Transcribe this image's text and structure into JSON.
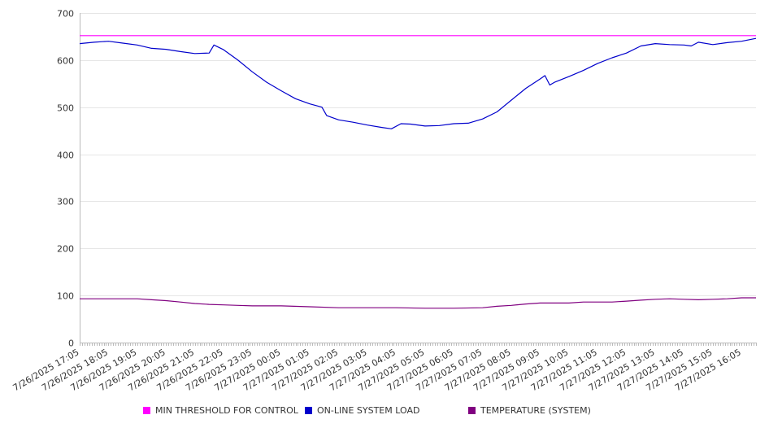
{
  "chart_data": {
    "type": "line",
    "x_start": "7/26/2025 17:05",
    "x_end": "7/27/2025 16:35",
    "x_interval_minutes": 5,
    "tick_labels": [
      "7/26/2025 17:05",
      "7/26/2025 18:05",
      "7/26/2025 19:05",
      "7/26/2025 20:05",
      "7/26/2025 21:05",
      "7/26/2025 22:05",
      "7/26/2025 23:05",
      "7/27/2025 00:05",
      "7/27/2025 01:05",
      "7/27/2025 02:05",
      "7/27/2025 03:05",
      "7/27/2025 04:05",
      "7/27/2025 05:05",
      "7/27/2025 06:05",
      "7/27/2025 07:05",
      "7/27/2025 08:05",
      "7/27/2025 09:05",
      "7/27/2025 10:05",
      "7/27/2025 11:05",
      "7/27/2025 12:05",
      "7/27/2025 13:05",
      "7/27/2025 14:05",
      "7/27/2025 15:05",
      "7/27/2025 16:05"
    ],
    "ylim": [
      0,
      700
    ],
    "yticks": [
      0,
      100,
      200,
      300,
      400,
      500,
      600,
      700
    ],
    "grid": true,
    "legend_position": "bottom",
    "series": [
      {
        "name": "MIN THRESHOLD FOR CONTROL",
        "color": "#ff00ff",
        "points": [
          [
            "7/26/2025 17:05",
            652
          ],
          [
            "7/27/2025 16:35",
            652
          ]
        ]
      },
      {
        "name": "ON-LINE SYSTEM LOAD",
        "color": "#0000cc",
        "points": [
          [
            "7/26/2025 17:05",
            635
          ],
          [
            "7/26/2025 17:35",
            638
          ],
          [
            "7/26/2025 18:05",
            640
          ],
          [
            "7/26/2025 18:35",
            636
          ],
          [
            "7/26/2025 19:05",
            632
          ],
          [
            "7/26/2025 19:35",
            625
          ],
          [
            "7/26/2025 20:05",
            623
          ],
          [
            "7/26/2025 20:35",
            618
          ],
          [
            "7/26/2025 21:05",
            614
          ],
          [
            "7/26/2025 21:35",
            615
          ],
          [
            "7/26/2025 21:45",
            632
          ],
          [
            "7/26/2025 22:05",
            622
          ],
          [
            "7/26/2025 22:35",
            600
          ],
          [
            "7/26/2025 23:05",
            575
          ],
          [
            "7/26/2025 23:35",
            553
          ],
          [
            "7/27/2025 00:05",
            535
          ],
          [
            "7/27/2025 00:35",
            518
          ],
          [
            "7/27/2025 01:05",
            507
          ],
          [
            "7/27/2025 01:30",
            500
          ],
          [
            "7/27/2025 01:40",
            482
          ],
          [
            "7/27/2025 02:05",
            473
          ],
          [
            "7/27/2025 02:35",
            468
          ],
          [
            "7/27/2025 03:05",
            462
          ],
          [
            "7/27/2025 03:35",
            457
          ],
          [
            "7/27/2025 03:55",
            454
          ],
          [
            "7/27/2025 04:15",
            465
          ],
          [
            "7/27/2025 04:35",
            464
          ],
          [
            "7/27/2025 05:05",
            460
          ],
          [
            "7/27/2025 05:35",
            461
          ],
          [
            "7/27/2025 06:05",
            465
          ],
          [
            "7/27/2025 06:35",
            466
          ],
          [
            "7/27/2025 07:05",
            475
          ],
          [
            "7/27/2025 07:35",
            490
          ],
          [
            "7/27/2025 08:05",
            515
          ],
          [
            "7/27/2025 08:35",
            540
          ],
          [
            "7/27/2025 09:05",
            560
          ],
          [
            "7/27/2025 09:15",
            567
          ],
          [
            "7/27/2025 09:25",
            547
          ],
          [
            "7/27/2025 09:35",
            553
          ],
          [
            "7/27/2025 10:05",
            565
          ],
          [
            "7/27/2025 10:35",
            578
          ],
          [
            "7/27/2025 11:05",
            593
          ],
          [
            "7/27/2025 11:35",
            605
          ],
          [
            "7/27/2025 12:05",
            615
          ],
          [
            "7/27/2025 12:35",
            630
          ],
          [
            "7/27/2025 13:05",
            635
          ],
          [
            "7/27/2025 13:35",
            633
          ],
          [
            "7/27/2025 14:05",
            632
          ],
          [
            "7/27/2025 14:20",
            630
          ],
          [
            "7/27/2025 14:35",
            638
          ],
          [
            "7/27/2025 15:05",
            633
          ],
          [
            "7/27/2025 15:35",
            637
          ],
          [
            "7/27/2025 16:05",
            640
          ],
          [
            "7/27/2025 16:35",
            646
          ]
        ]
      },
      {
        "name": "TEMPERATURE (SYSTEM)",
        "color": "#800080",
        "points": [
          [
            "7/26/2025 17:05",
            93
          ],
          [
            "7/26/2025 18:05",
            93
          ],
          [
            "7/26/2025 19:05",
            93
          ],
          [
            "7/26/2025 19:35",
            91
          ],
          [
            "7/26/2025 20:05",
            89
          ],
          [
            "7/26/2025 20:35",
            86
          ],
          [
            "7/26/2025 21:05",
            83
          ],
          [
            "7/26/2025 21:35",
            81
          ],
          [
            "7/26/2025 22:05",
            80
          ],
          [
            "7/26/2025 22:35",
            79
          ],
          [
            "7/26/2025 23:05",
            78
          ],
          [
            "7/27/2025 00:05",
            78
          ],
          [
            "7/27/2025 01:05",
            76
          ],
          [
            "7/27/2025 02:05",
            74
          ],
          [
            "7/27/2025 03:05",
            74
          ],
          [
            "7/27/2025 04:05",
            74
          ],
          [
            "7/27/2025 05:05",
            73
          ],
          [
            "7/27/2025 06:05",
            73
          ],
          [
            "7/27/2025 07:05",
            74
          ],
          [
            "7/27/2025 07:35",
            77
          ],
          [
            "7/27/2025 08:05",
            79
          ],
          [
            "7/27/2025 08:35",
            82
          ],
          [
            "7/27/2025 09:05",
            84
          ],
          [
            "7/27/2025 10:05",
            84
          ],
          [
            "7/27/2025 10:35",
            86
          ],
          [
            "7/27/2025 11:35",
            86
          ],
          [
            "7/27/2025 12:05",
            88
          ],
          [
            "7/27/2025 12:35",
            90
          ],
          [
            "7/27/2025 13:05",
            92
          ],
          [
            "7/27/2025 13:35",
            93
          ],
          [
            "7/27/2025 14:05",
            92
          ],
          [
            "7/27/2025 14:35",
            91
          ],
          [
            "7/27/2025 15:05",
            92
          ],
          [
            "7/27/2025 15:35",
            93
          ],
          [
            "7/27/2025 16:05",
            95
          ],
          [
            "7/27/2025 16:35",
            95
          ]
        ]
      }
    ]
  }
}
